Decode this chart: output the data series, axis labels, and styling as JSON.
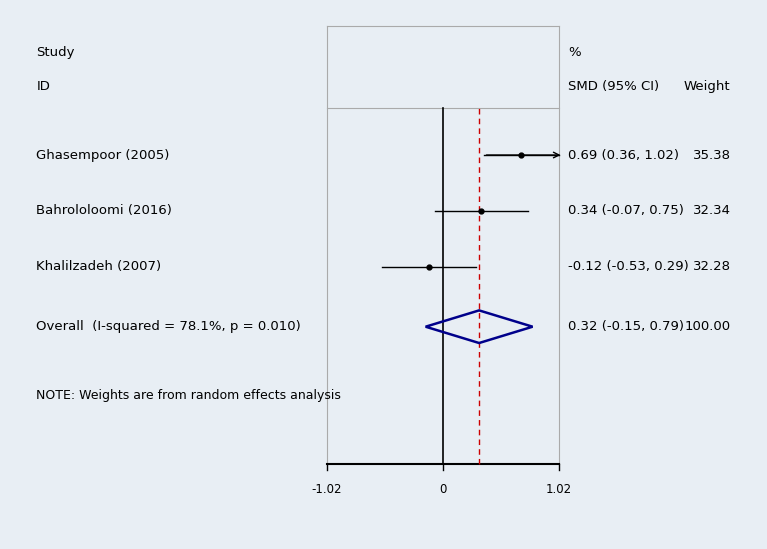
{
  "studies": [
    "Ghasempoor (2005)",
    "Bahrololoomi (2016)",
    "Khalilzadeh (2007)"
  ],
  "smd": [
    0.69,
    0.34,
    -0.12
  ],
  "ci_low": [
    0.36,
    -0.07,
    -0.53
  ],
  "ci_high": [
    1.02,
    0.75,
    0.29
  ],
  "ci_labels": [
    "0.69 (0.36, 1.02)",
    "0.34 (-0.07, 0.75)",
    "-0.12 (-0.53, 0.29)"
  ],
  "weight_labels": [
    "35.38",
    "32.34",
    "32.28"
  ],
  "overall_smd": 0.32,
  "overall_ci_low": -0.15,
  "overall_ci_high": 0.79,
  "overall_label": "0.32 (-0.15, 0.79)",
  "overall_weight": "100.00",
  "overall_text": "Overall  (I-squared = 78.1%, p = 0.010)",
  "x_ticks": [
    -1.02,
    0,
    1.02
  ],
  "dashed_line": 0.32,
  "note": "NOTE: Weights are from random effects analysis",
  "col_study_label": "Study",
  "col_pct_label": "%",
  "col_id_label": "ID",
  "col_smd_label": "SMD (95% CI)",
  "col_weight_label": "Weight",
  "background_color": "#e8eef4",
  "plot_bg_color": "#ffffff",
  "diamond_color": "#00008B",
  "arrow_study_idx": 0
}
